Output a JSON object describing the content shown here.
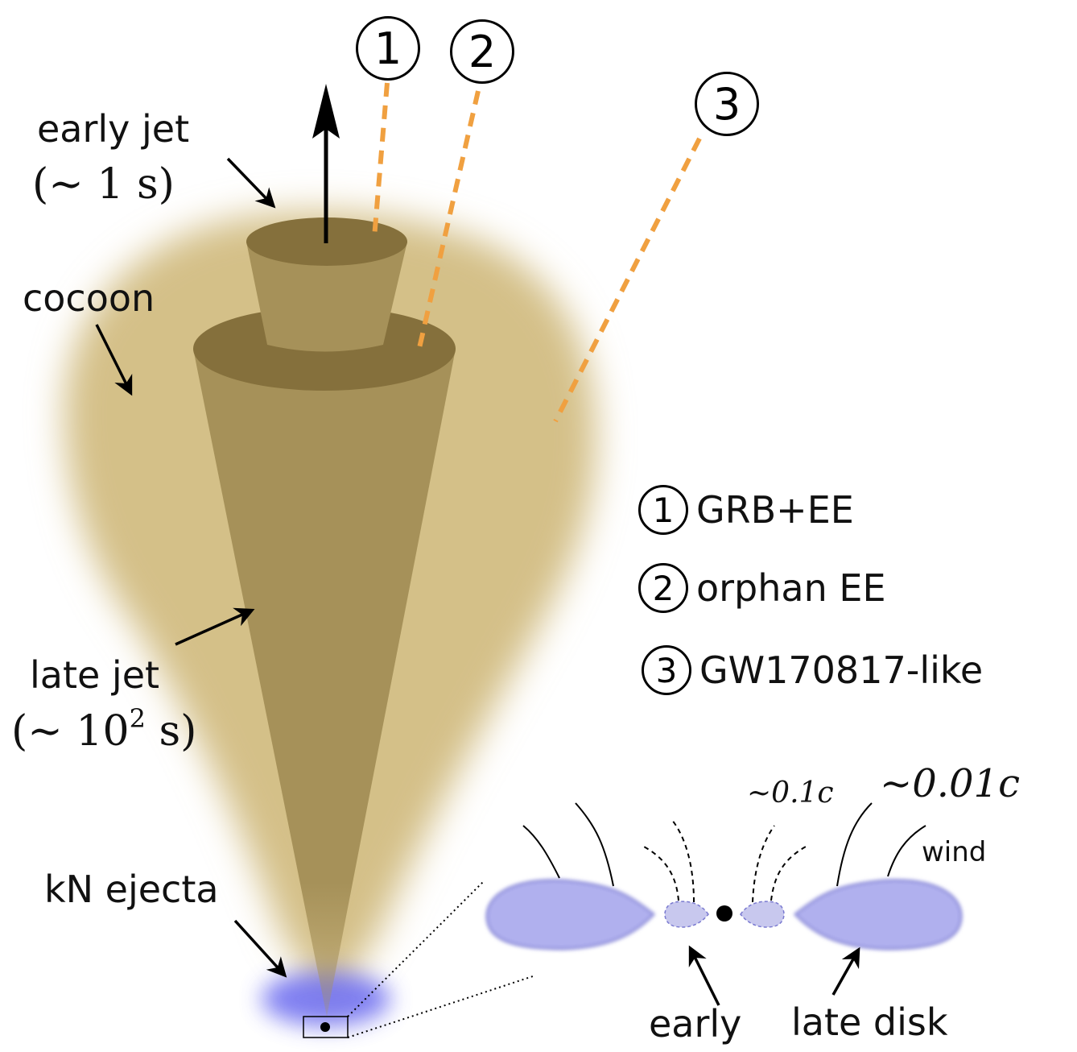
{
  "labels": {
    "early_jet": "early jet",
    "early_jet_time": "(∼ 1 s)",
    "cocoon": "cocoon",
    "late_jet": "late jet",
    "late_jet_time_prefix": "(∼ 10",
    "late_jet_time_exp": "2",
    "late_jet_time_suffix": " s)",
    "kn_ejecta": "kN ejecta",
    "speed_fast": "∼0.1c",
    "speed_slow": "∼0.01c",
    "wind": "wind",
    "early": "early",
    "late_disk": "late disk"
  },
  "markers": [
    "1",
    "2",
    "3"
  ],
  "legend": [
    {
      "num": "1",
      "text": "GRB+EE"
    },
    {
      "num": "2",
      "text": "orphan EE"
    },
    {
      "num": "3",
      "text": "GW170817-like"
    }
  ],
  "colors": {
    "cocoon": "#d4c088",
    "jet_body": "#a69159",
    "jet_cap": "#85703c",
    "los_line": "#f0a040",
    "ejecta": "#b0b0ee",
    "ejecta_edge": "#8888d8"
  }
}
